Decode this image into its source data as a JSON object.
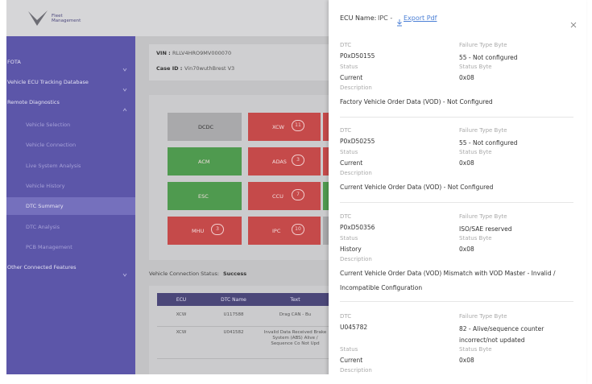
{
  "sidebar": {
    "logo": "Fleet Management",
    "menu": [
      "FOTA",
      "Vehicle ECU Tracking Database",
      "Remote Diagnostics",
      "Vehicle Selection",
      "Vehicle Connection",
      "Live System Analysis",
      "Vehicle History",
      "DTC Summary",
      "DTC Analysis",
      "PCB Management",
      "Other Connected Features"
    ]
  },
  "vehicle": {
    "vin_label": "VIN :",
    "vin": "RLLV4HRO9MV000070",
    "case_label": "Case ID :",
    "case": "Vin70wuthBrest V3"
  },
  "ecus": [
    {
      "name": "DCDC"
    },
    {
      "name": "XCW",
      "count": "11"
    },
    {
      "name": "ACM"
    },
    {
      "name": "ADAS",
      "count": "3"
    },
    {
      "name": "ESC"
    },
    {
      "name": "CCU",
      "count": "7"
    },
    {
      "name": "MHU",
      "count": "3"
    },
    {
      "name": "IPC",
      "count": "10"
    }
  ],
  "connection": {
    "label": "Vehicle Connection Status:",
    "value": "Success"
  },
  "table": {
    "headers": [
      "ECU",
      "DTC Name",
      "Text"
    ],
    "rows": [
      [
        "XCW",
        "U117588",
        "Drag CAN - Bu"
      ],
      [
        "XCW",
        "U041582",
        "Invalid Data Received Brake System (ABS) Alive / Sequence Co Not Upd"
      ]
    ]
  },
  "drawer": {
    "title": "ECU Name:",
    "ecu": "IPC -",
    "export": "Export Pdf",
    "labels": {
      "dtc": "DTC",
      "failure": "Failure Type Byte",
      "status": "Status",
      "status_byte": "Status Byte",
      "description": "Description"
    },
    "entries": [
      {
        "dtc": "P0xD50155",
        "failure": "55 - Not configured",
        "status": "Current",
        "status_byte": "0x08",
        "description": "Factory Vehicle Order Data (VOD) - Not Configured"
      },
      {
        "dtc": "P0xD50255",
        "failure": "55 - Not configured",
        "status": "Current",
        "status_byte": "0x08",
        "description": "Current Vehicle Order Data (VOD) - Not Configured"
      },
      {
        "dtc": "P0xD50356",
        "failure": "ISO/SAE reserved",
        "status": "History",
        "status_byte": "0x08",
        "description": "Current Vehicle Order Data (VOD) Mismatch with VOD Master - Invalid / Incompatible Configuration"
      },
      {
        "dtc": "U045782",
        "failure": "82 - Alive/sequence counter incorrect/not updated",
        "status": "Current",
        "status_byte": "0x08"
      }
    ]
  }
}
